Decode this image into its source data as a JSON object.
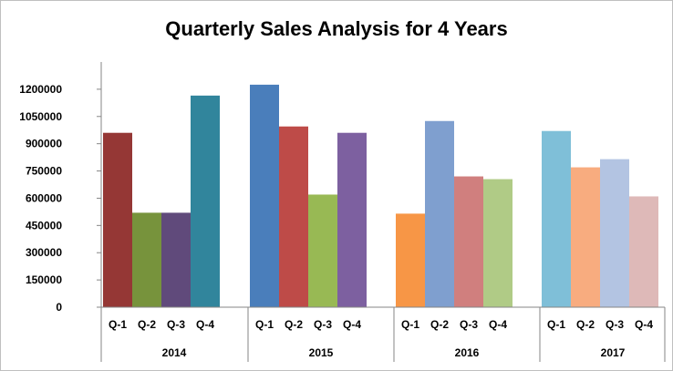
{
  "chart_data": {
    "type": "bar",
    "title": "Quarterly Sales Analysis for  4 Years",
    "xlabel": "",
    "ylabel": "",
    "ylim": [
      0,
      1350000
    ],
    "yticks": [
      0,
      150000,
      300000,
      450000,
      600000,
      750000,
      900000,
      1050000,
      1200000
    ],
    "ytick_labels": [
      "0",
      "150000",
      "300000",
      "450000",
      "600000",
      "750000",
      "900000",
      "1050000",
      "1200000"
    ],
    "grid": false,
    "legend": "none",
    "groups": [
      {
        "label": "2014",
        "categories": [
          "Q-1",
          "Q-2",
          "Q-3",
          "Q-4"
        ],
        "values": [
          960000,
          520000,
          520000,
          1165000
        ],
        "colors": [
          "#953735",
          "#77933c",
          "#604a7b",
          "#31859c"
        ]
      },
      {
        "label": "2015",
        "categories": [
          "Q-1",
          "Q-2",
          "Q-3",
          "Q-4"
        ],
        "values": [
          1225000,
          995000,
          620000,
          960000
        ],
        "colors": [
          "#4a7ebb",
          "#be4b48",
          "#98b954",
          "#7d60a0"
        ]
      },
      {
        "label": "2016",
        "categories": [
          "Q-1",
          "Q-2",
          "Q-3",
          "Q-4"
        ],
        "values": [
          515000,
          1025000,
          720000,
          705000
        ],
        "colors": [
          "#f79646",
          "#7f9fcf",
          "#d07f7e",
          "#b0cb86"
        ]
      },
      {
        "label": "2017",
        "categories": [
          "Q-1",
          "Q-2",
          "Q-3",
          "Q-4"
        ],
        "values": [
          970000,
          770000,
          815000,
          610000
        ],
        "colors": [
          "#7fbfd8",
          "#f8ac7f",
          "#b3c4e2",
          "#deb9b8"
        ]
      }
    ]
  }
}
